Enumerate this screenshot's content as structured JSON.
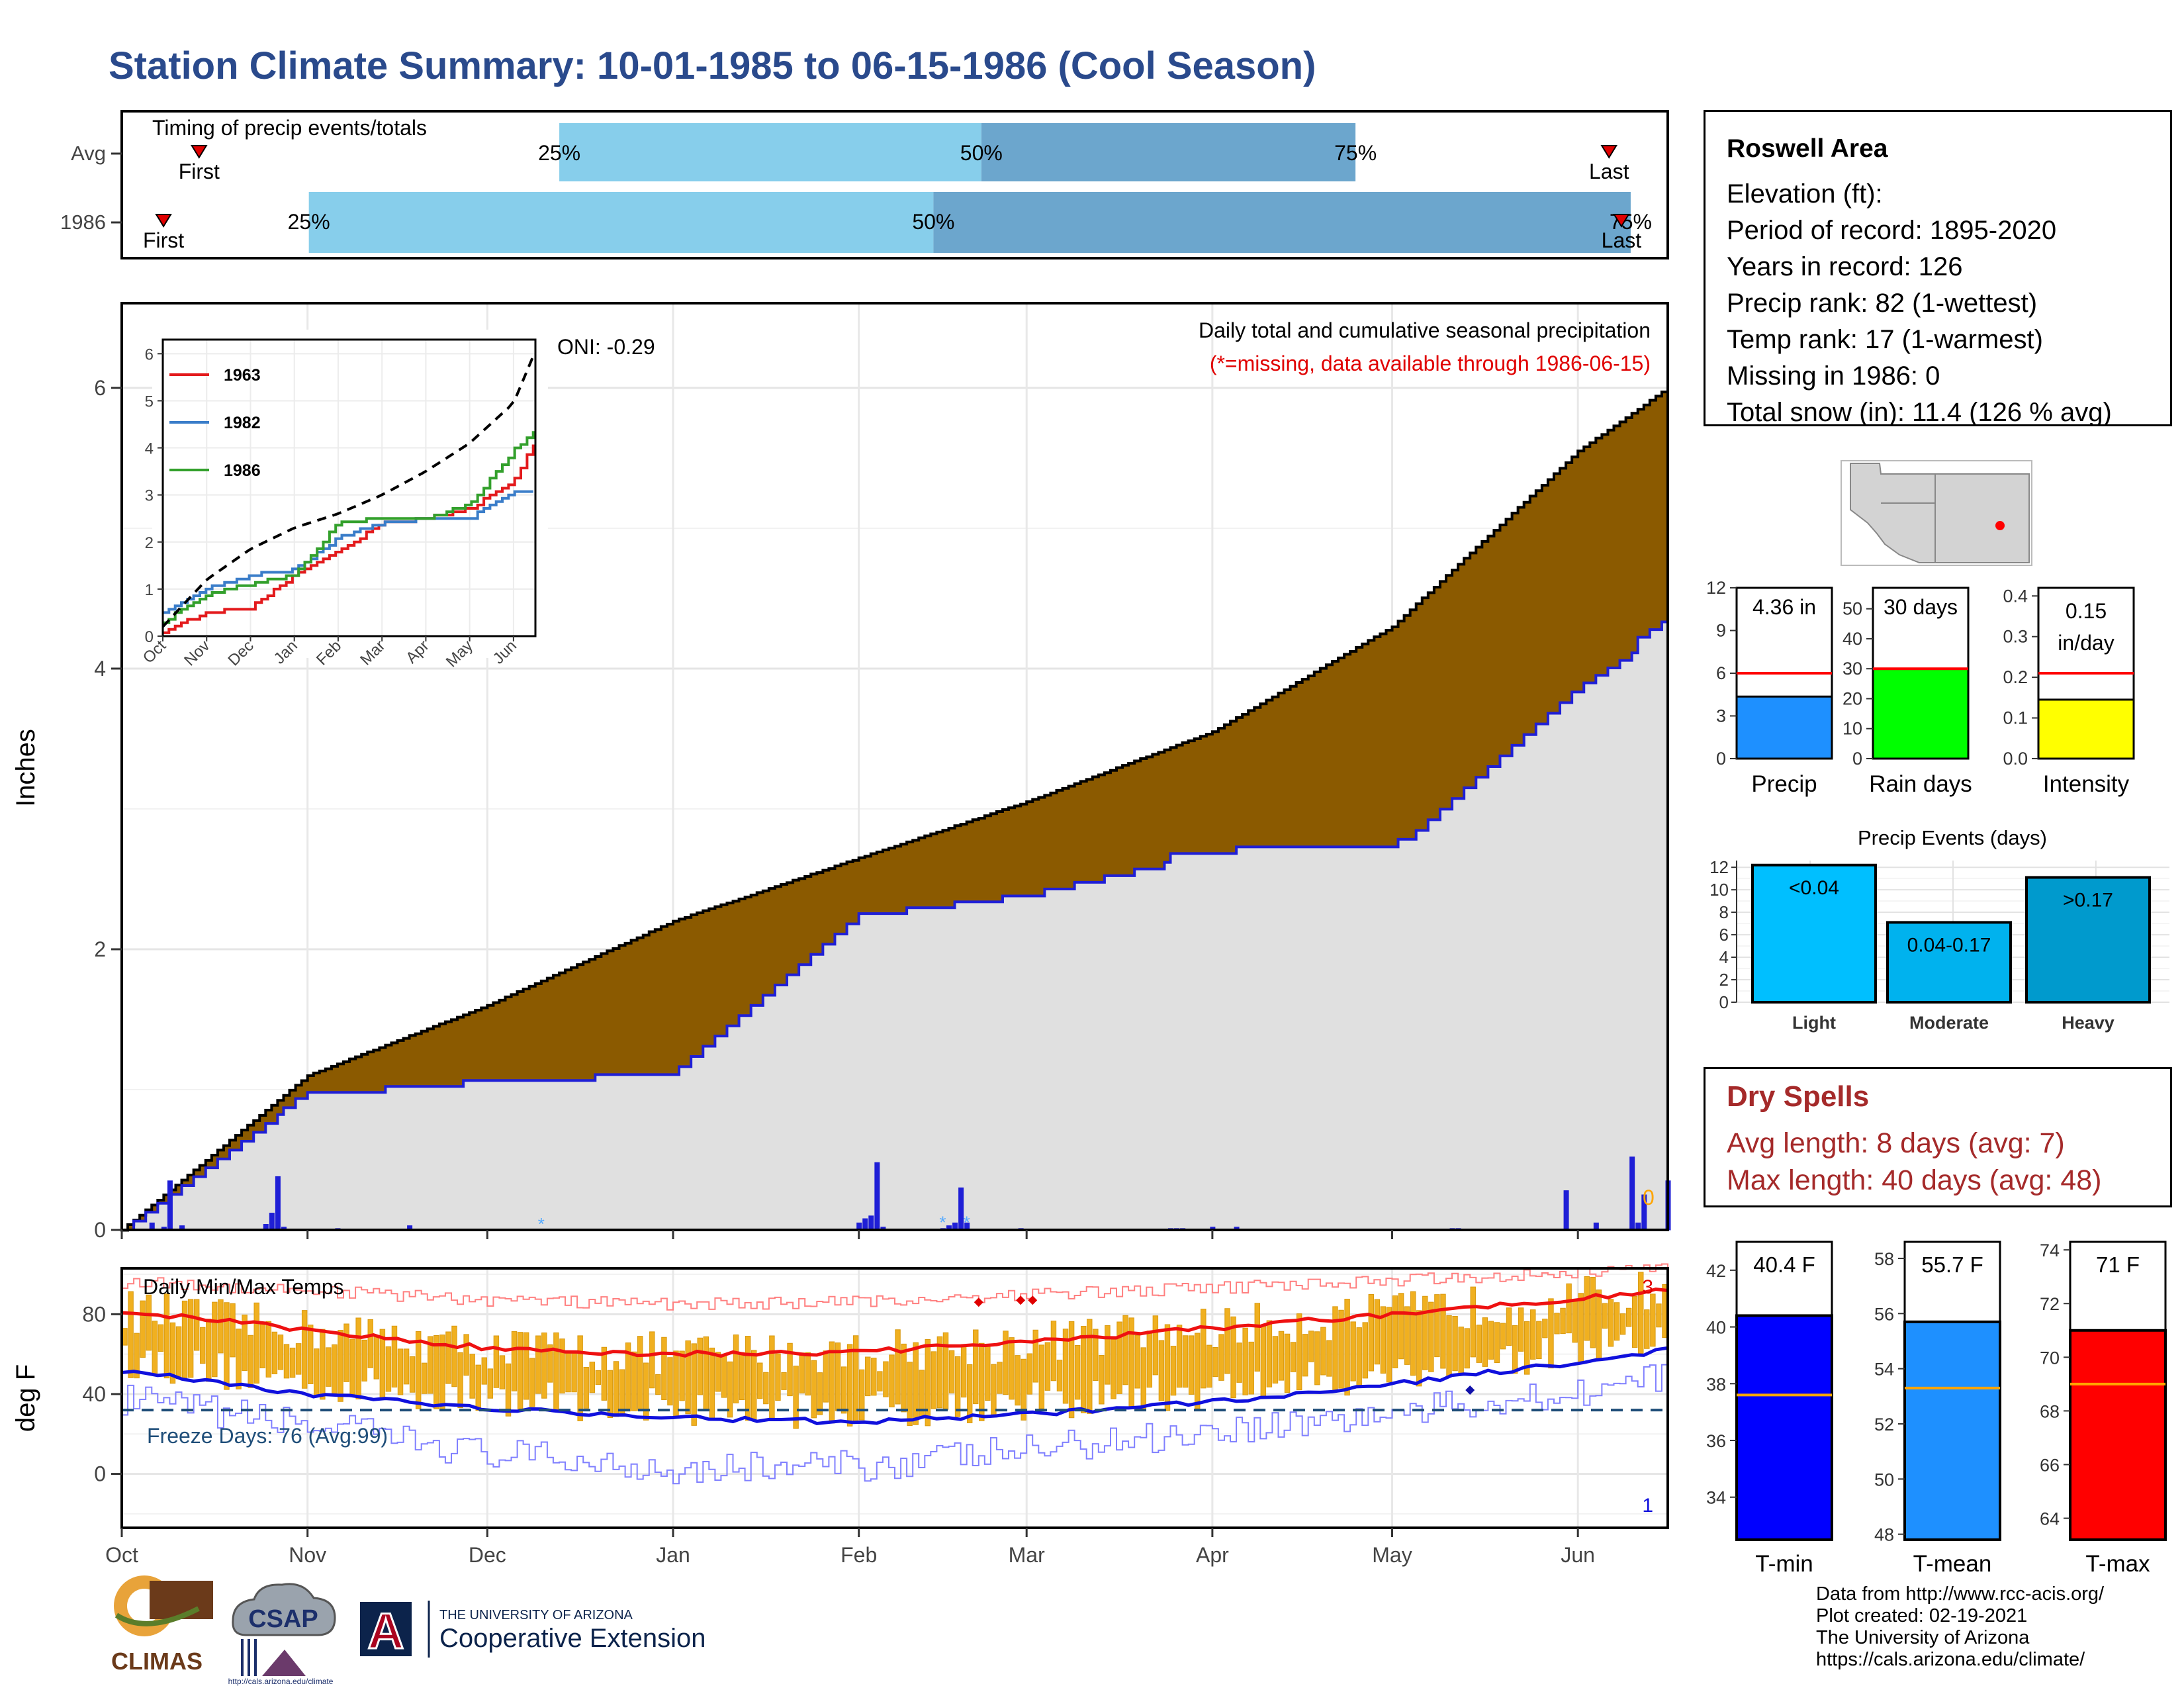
{
  "title": "Station Climate Summary: 10-01-1985 to 06-15-1986 (Cool Season)",
  "timing": {
    "label": "Timing of precip events/totals",
    "rows": [
      {
        "name": "Avg",
        "first_label": "First",
        "last_label": "Last",
        "first": 0.05,
        "q25": 0.283,
        "q50": 0.556,
        "q75": 0.798,
        "last": 0.962
      },
      {
        "name": "1986",
        "first_label": "First",
        "last_label": "Last",
        "first": 0.027,
        "q25": 0.121,
        "q50": 0.525,
        "q75": 0.976,
        "last": 0.97
      }
    ],
    "pct_labels": [
      "25%",
      "50%",
      "75%"
    ],
    "colors": {
      "early": "#87ceeb",
      "late": "#6ca6cd",
      "marker": "#e00000"
    }
  },
  "precip": {
    "ylabel": "Inches",
    "title": "Daily total and cumulative seasonal precipitation",
    "missing_note": "(*=missing, data available through 1986-06-15)",
    "oni": "ONI: -0.29",
    "missing_count": "0",
    "yticks": [
      "0",
      "2",
      "4",
      "6"
    ],
    "colors": {
      "avg_fill": "#8b5a00",
      "above_fill": "#228b22",
      "obs_fill": "#e0e0e0",
      "obs_line": "#1f1fd6",
      "daily_bar": "#1f1fd6"
    }
  },
  "inset": {
    "yticks": [
      "0",
      "1",
      "2",
      "3",
      "4",
      "5",
      "6"
    ],
    "xticks": [
      "Oct",
      "Nov",
      "Dec",
      "Jan",
      "Feb",
      "Mar",
      "Apr",
      "May",
      "Jun"
    ],
    "legend": [
      {
        "name": "1963",
        "color": "#e31a1c"
      },
      {
        "name": "1982",
        "color": "#3a7dc9"
      },
      {
        "name": "1986",
        "color": "#33a02c"
      }
    ]
  },
  "temps": {
    "title": "Daily Min/Max Temps",
    "ylabel": "deg F",
    "yticks": [
      "0",
      "40",
      "80"
    ],
    "freeze_label": "Freeze Days: 76 (Avg:99)",
    "max_record_count": "3",
    "min_record_count": "1",
    "colors": {
      "bars": "#f0b020",
      "max_avg": "#ee1111",
      "min_avg": "#1010dd",
      "rec_max": "#ff8080",
      "rec_min": "#8080ff",
      "freeze": "#1f4e79"
    }
  },
  "xaxis": {
    "labels": [
      "Oct",
      "Nov",
      "Dec",
      "Jan",
      "Feb",
      "Mar",
      "Apr",
      "May",
      "Jun"
    ]
  },
  "info": {
    "header": "Roswell Area",
    "lines": [
      "Elevation (ft):",
      "Period of record: 1895-2020",
      "Years in record: 126",
      "Precip rank: 82 (1-wettest)",
      "Temp rank: 17 (1-warmest)",
      "Missing in 1986: 0",
      "Total snow (in): 11.4 (126 % avg)"
    ]
  },
  "gauges": [
    {
      "name": "Precip",
      "value_label": "4.36 in",
      "value": 4.36,
      "avg": 6,
      "ymax": 12,
      "yticks": [
        "0",
        "3",
        "6",
        "9",
        "12"
      ],
      "color": "#1e90ff"
    },
    {
      "name": "Rain days",
      "value_label": "30 days",
      "value": 30,
      "avg": 30,
      "ymax": 57,
      "yticks": [
        "0",
        "10",
        "20",
        "30",
        "40",
        "50"
      ],
      "color": "#00ff00"
    },
    {
      "name": "Intensity",
      "value_label": "0.15 in/day",
      "value_line1": "0.15",
      "value_line2": "in/day",
      "value": 0.145,
      "avg": 0.21,
      "ymax": 0.42,
      "yticks": [
        "0.0",
        "0.1",
        "0.2",
        "0.3",
        "0.4"
      ],
      "color": "#ffff00"
    }
  ],
  "events": {
    "title": "Precip Events (days)",
    "yticks": [
      "0",
      "2",
      "4",
      "6",
      "8",
      "10",
      "12"
    ],
    "bars": [
      {
        "category": "Light",
        "label": "<0.04",
        "value": 12.2,
        "color": "#00bfff"
      },
      {
        "category": "Moderate",
        "label": "0.04-0.17",
        "value": 7.1,
        "color": "#00b2ee"
      },
      {
        "category": "Heavy",
        "label": ">0.17",
        "value": 11.1,
        "color": "#009acd"
      }
    ]
  },
  "dry_spells": {
    "header": "Dry Spells",
    "lines": [
      "Avg length: 8 days (avg: 7)",
      "Max length: 40 days (avg: 48)"
    ]
  },
  "temp_gauges": [
    {
      "name": "T-min",
      "value_label": "40.4 F",
      "value": 40.4,
      "avg": 37.6,
      "ymin": 32.5,
      "ymax": 43,
      "yticks": [
        "34",
        "36",
        "38",
        "40",
        "42"
      ],
      "color": "#0000ff"
    },
    {
      "name": "T-mean",
      "value_label": "55.7 F",
      "value": 55.7,
      "avg": 53.3,
      "ymin": 47.8,
      "ymax": 58.6,
      "yticks": [
        "48",
        "50",
        "52",
        "54",
        "56",
        "58"
      ],
      "color": "#1e90ff"
    },
    {
      "name": "T-max",
      "value_label": "71 F",
      "value": 71,
      "avg": 69,
      "ymin": 63.2,
      "ymax": 74.3,
      "yticks": [
        "64",
        "66",
        "68",
        "70",
        "72",
        "74"
      ],
      "color": "#ff0000"
    }
  ],
  "credits": [
    "Data from http://www.rcc-acis.org/",
    "Plot created: 02-19-2021",
    "The University of Arizona",
    "https://cals.arizona.edu/climate/"
  ],
  "logos": {
    "climas": "CLIMAS",
    "csap": "CSAP",
    "csap_url": "http://cals.arizona.edu/climate",
    "ua_line1": "THE UNIVERSITY OF ARIZONA",
    "ua_line2": "Cooperative Extension",
    "ua_mark": "A"
  },
  "chart_data": [
    {
      "type": "bar",
      "title": "Timing of precip events/totals",
      "categories": [
        "Avg",
        "1986"
      ],
      "series": [
        {
          "name": "25%",
          "values": [
            0.283,
            0.121
          ]
        },
        {
          "name": "50%",
          "values": [
            0.556,
            0.525
          ]
        },
        {
          "name": "75%",
          "values": [
            0.798,
            0.976
          ]
        }
      ]
    },
    {
      "type": "area",
      "title": "Daily total and cumulative seasonal precipitation",
      "ylabel": "Inches",
      "xlabel": "",
      "ylim": [
        0,
        6.6
      ],
      "x": [
        "1985-10-01",
        "1985-11-01",
        "1985-12-01",
        "1986-01-01",
        "1986-02-01",
        "1986-03-01",
        "1986-04-01",
        "1986-05-01",
        "1986-06-01",
        "1986-06-15"
      ],
      "series": [
        {
          "name": "",
          "values": [
            0,
            1.1,
            1.6,
            2.2,
            2.65,
            3.05,
            3.55,
            4.3,
            5.55,
            6.0
          ]
        },
        {
          "name": "",
          "values": [
            0,
            1.0,
            1.1,
            1.15,
            2.3,
            2.45,
            2.75,
            2.75,
            3.95,
            4.36
          ]
        }
      ],
      "grid": true
    },
    {
      "type": "line",
      "ylim": [
        0,
        6.3
      ],
      "x": [
        "Oct",
        "Nov",
        "Dec",
        "Jan",
        "Feb",
        "Mar",
        "Apr",
        "May",
        "Jun",
        "Jun-15"
      ],
      "series": [
        {
          "name": "1963",
          "values": [
            0.1,
            0.5,
            0.6,
            1.3,
            1.8,
            2.4,
            2.5,
            2.7,
            3.3,
            4.1
          ]
        },
        {
          "name": "1982",
          "values": [
            0.5,
            1.0,
            1.3,
            1.4,
            2.1,
            2.4,
            2.5,
            2.5,
            3.1,
            3.1
          ]
        },
        {
          "name": "1986",
          "values": [
            0.3,
            0.9,
            1.1,
            1.3,
            2.4,
            2.5,
            2.5,
            2.8,
            3.95,
            4.36
          ]
        },
        {
          "name": "",
          "values": [
            0.2,
            1.2,
            1.85,
            2.3,
            2.6,
            3.0,
            3.5,
            4.1,
            4.95,
            5.95
          ]
        }
      ]
    },
    {
      "type": "line",
      "title": "Daily Min/Max Temps",
      "ylabel": "deg F",
      "ylim": [
        -27,
        103
      ],
      "x": [
        "1985-10-01",
        "1985-11-01",
        "1985-12-01",
        "1986-01-01",
        "1986-02-01",
        "1986-03-01",
        "1986-04-01",
        "1986-05-01",
        "1986-06-01",
        "1986-06-15"
      ],
      "series": [
        {
          "name": "",
          "values": [
            82,
            72,
            63,
            60,
            61,
            66,
            73,
            80,
            88,
            92
          ]
        },
        {
          "name": "",
          "values": [
            52,
            40,
            33,
            28,
            26,
            30,
            36,
            45,
            56,
            62
          ]
        },
        {
          "name": "",
          "values": [
            96,
            92,
            87,
            85,
            86,
            90,
            93,
            97,
            101,
            103
          ]
        },
        {
          "name": "",
          "values": [
            37,
            25,
            10,
            3,
            4,
            12,
            22,
            30,
            42,
            48
          ]
        }
      ]
    },
    {
      "type": "bar",
      "title": "Precip Events (days)",
      "categories": [
        "Light",
        "Moderate",
        "Heavy"
      ],
      "values": [
        12.2,
        7.1,
        11.1
      ],
      "ylim": [
        0,
        12.5
      ]
    }
  ]
}
